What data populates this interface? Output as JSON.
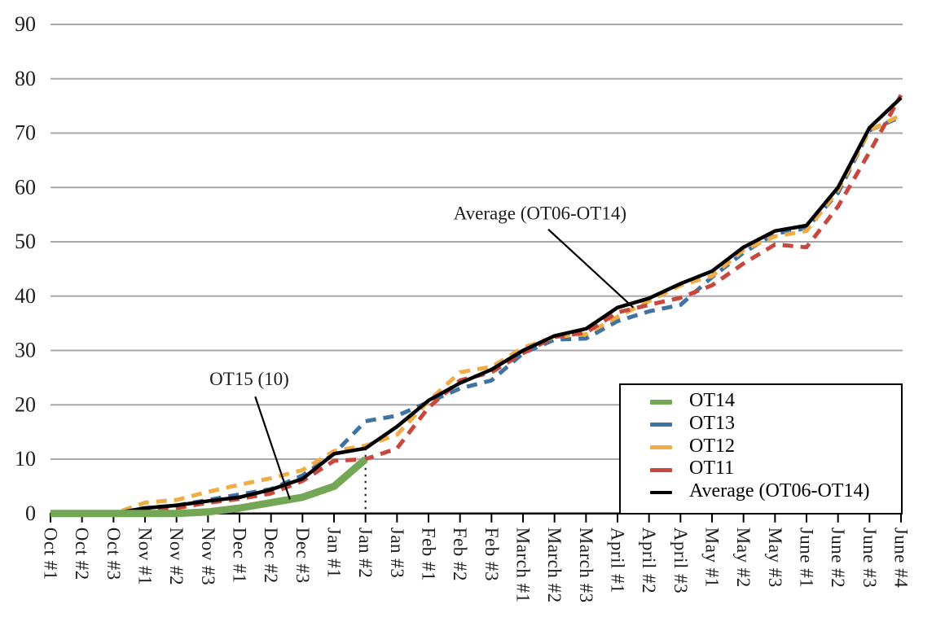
{
  "chart_data": {
    "type": "line",
    "title": "",
    "xlabel": "",
    "ylabel": "",
    "ylim": [
      0,
      90
    ],
    "grid": true,
    "y_ticks": [
      0,
      10,
      20,
      30,
      40,
      50,
      60,
      70,
      80,
      90
    ],
    "categories": [
      "Oct #1",
      "Oct #2",
      "Oct #3",
      "Nov #1",
      "Nov #2",
      "Nov #3",
      "Dec #1",
      "Dec #2",
      "Dec #3",
      "Jan #1",
      "Jan #2",
      "Jan #3",
      "Feb #1",
      "Feb #2",
      "Feb #3",
      "March #1",
      "March #2",
      "March #3",
      "April #1",
      "April #2",
      "April #3",
      "May #1",
      "May #2",
      "May #3",
      "June #1",
      "June #2",
      "June #3",
      "June #4"
    ],
    "series": [
      {
        "id": "ot14",
        "name": "OT14",
        "color": "#74a755",
        "style": "solid",
        "width": 9,
        "values": [
          0,
          0,
          0,
          0,
          0,
          0.3,
          1,
          2,
          3,
          5,
          10,
          null,
          null,
          null,
          null,
          null,
          null,
          null,
          null,
          null,
          null,
          null,
          null,
          null,
          null,
          null,
          null,
          null
        ]
      },
      {
        "id": "ot13",
        "name": "OT13",
        "color": "#3f73a3",
        "style": "dashed",
        "width": 5,
        "values": [
          0,
          0,
          0,
          1,
          1.5,
          2.5,
          3.5,
          4.5,
          7,
          11,
          17,
          18,
          20.5,
          23,
          24.5,
          29.5,
          32,
          32.2,
          35.4,
          37.2,
          38.4,
          43.5,
          48,
          51.5,
          52.5,
          59,
          70.5,
          73
        ]
      },
      {
        "id": "ot12",
        "name": "OT12",
        "color": "#f0ac45",
        "style": "dashed",
        "width": 5,
        "values": [
          0,
          0,
          0,
          2,
          2.5,
          4,
          5.3,
          6.5,
          8,
          11.5,
          12.5,
          14.5,
          20.7,
          26,
          27,
          30.5,
          32.5,
          33,
          36.2,
          39.1,
          42,
          43.7,
          48.5,
          51,
          52,
          59.5,
          70.5,
          73.3
        ]
      },
      {
        "id": "ot11",
        "name": "OT11",
        "color": "#c8473e",
        "style": "dashed",
        "width": 5,
        "values": [
          0,
          0,
          0,
          0.5,
          1,
          2,
          2.7,
          3.7,
          6,
          9.7,
          10,
          12,
          19.5,
          24.5,
          26,
          29.5,
          32.5,
          33.3,
          37,
          38.4,
          39.7,
          42,
          46,
          49.5,
          49,
          56.5,
          66.5,
          77
        ]
      },
      {
        "id": "average",
        "name": "Average (OT06-OT14)",
        "color": "#000000",
        "style": "solid",
        "width": 4.5,
        "values": [
          0,
          0,
          0,
          1,
          1.5,
          2.3,
          3,
          4.4,
          6.4,
          11,
          12,
          16,
          20.8,
          24,
          26.5,
          30,
          32.7,
          34,
          37.9,
          39.6,
          42.3,
          44.6,
          49,
          52,
          53,
          60,
          71,
          76.5
        ]
      }
    ],
    "legend": {
      "position": "bottom-right",
      "entries": [
        "OT14",
        "OT13",
        "OT12",
        "OT11",
        "Average (OT06-OT14)"
      ]
    },
    "annotations": [
      {
        "id": "average-callout",
        "text": "Average (OT06-OT14)",
        "text_x": 15.54,
        "text_y": 54.9,
        "line": [
          [
            15.8,
            52.3
          ],
          [
            18.5,
            37.9
          ]
        ],
        "line_style": "solid"
      },
      {
        "id": "ot15-callout",
        "text": "OT15 (10)",
        "text_x": 6.31,
        "text_y": 24.4,
        "line": [
          [
            6.5,
            21.5
          ],
          [
            7.6,
            2.6
          ]
        ],
        "line_style": "solid"
      },
      {
        "id": "jan2-dropline",
        "text": "",
        "line": [
          [
            10,
            12
          ],
          [
            10,
            0
          ]
        ],
        "line_style": "dotted"
      }
    ]
  }
}
